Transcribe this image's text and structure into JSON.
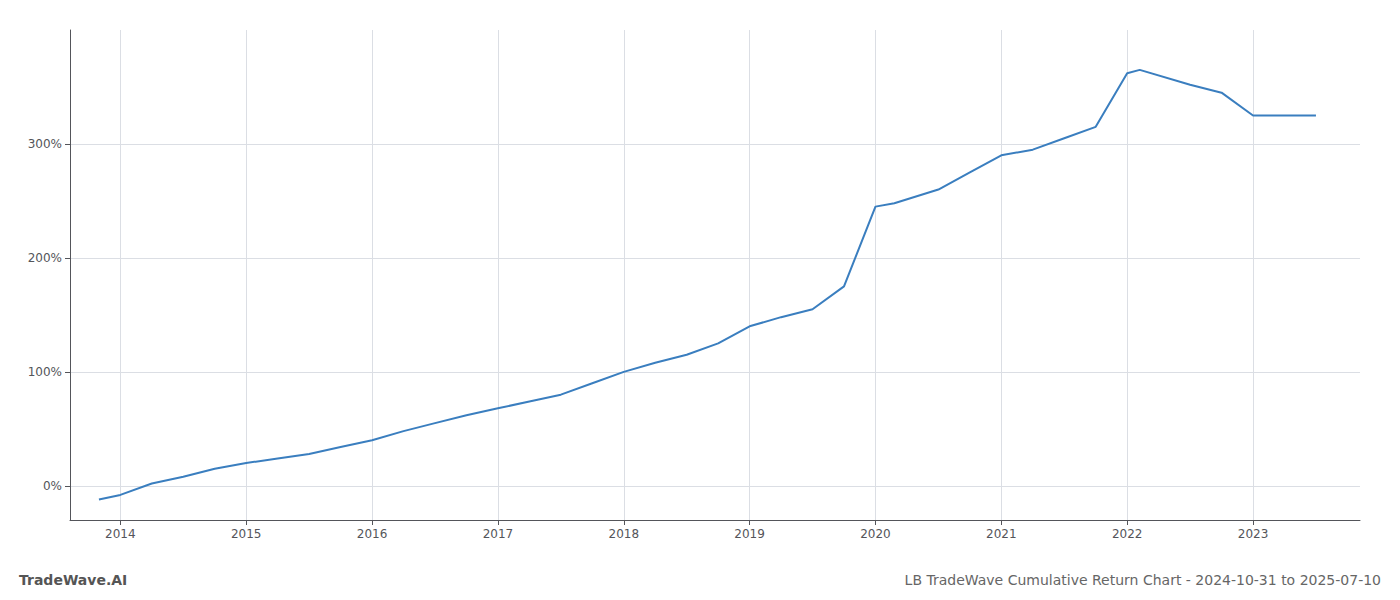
{
  "chart_data": {
    "type": "line",
    "title": "LB TradeWave Cumulative Return Chart - 2024-10-31 to 2025-07-10",
    "annotations": [
      "TradeWave.AI"
    ],
    "x": [
      2013.83,
      2014.0,
      2014.25,
      2014.5,
      2014.75,
      2015.0,
      2015.25,
      2015.5,
      2015.75,
      2016.0,
      2016.25,
      2016.5,
      2016.75,
      2017.0,
      2017.25,
      2017.5,
      2017.75,
      2018.0,
      2018.25,
      2018.5,
      2018.75,
      2019.0,
      2019.25,
      2019.5,
      2019.75,
      2020.0,
      2020.15,
      2020.5,
      2020.75,
      2021.0,
      2021.25,
      2021.5,
      2021.75,
      2022.0,
      2022.1,
      2022.5,
      2022.75,
      2023.0,
      2023.5
    ],
    "values": [
      -12,
      -8,
      2,
      8,
      15,
      20,
      24,
      28,
      34,
      40,
      48,
      55,
      62,
      68,
      74,
      80,
      90,
      100,
      108,
      115,
      125,
      140,
      148,
      155,
      175,
      245,
      248,
      260,
      275,
      290,
      295,
      305,
      315,
      362,
      365,
      352,
      345,
      325,
      325
    ],
    "color": "#3a7ebf",
    "xlim": [
      2013.6,
      2023.85
    ],
    "xticks": [
      2014,
      2015,
      2016,
      2017,
      2018,
      2019,
      2020,
      2021,
      2022,
      2023
    ],
    "ylim": [
      -30,
      400
    ],
    "yticks": [
      {
        "value": 0,
        "label": "0%"
      },
      {
        "value": 100,
        "label": "100%"
      },
      {
        "value": 200,
        "label": "200%"
      },
      {
        "value": 300,
        "label": "300%"
      }
    ],
    "grid": true
  }
}
